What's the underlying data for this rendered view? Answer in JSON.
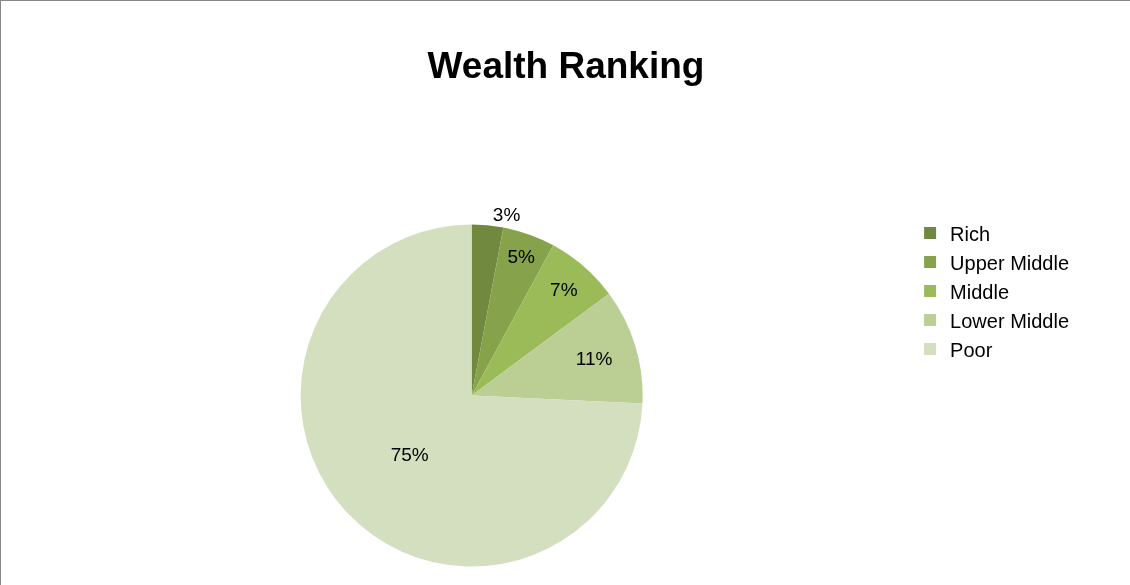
{
  "chart_data": {
    "type": "pie",
    "title": "Wealth Ranking",
    "categories": [
      "Rich",
      "Upper Middle",
      "Middle",
      "Lower Middle",
      "Poor"
    ],
    "values": [
      3,
      5,
      7,
      11,
      75
    ],
    "value_labels": [
      "3%",
      "5%",
      "7%",
      "11%",
      "75%"
    ],
    "colors": [
      "#71893f",
      "#86a34c",
      "#9bbb59",
      "#bbcf94",
      "#d3dfbf"
    ],
    "legend": "right"
  }
}
